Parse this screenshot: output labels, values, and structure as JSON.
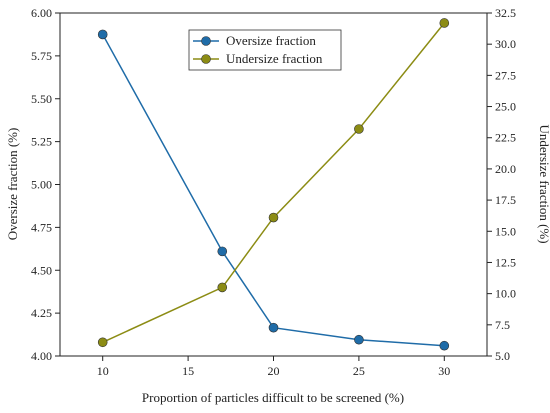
{
  "chart_data": {
    "type": "line",
    "title": "",
    "xlabel": "Proportion of particles difficult to be screened (%)",
    "ylabel_left": "Oversize fraction  (%)",
    "ylabel_right": "Undersize fraction (%)",
    "x": [
      10,
      17,
      20,
      25,
      30
    ],
    "xlim": [
      7.5,
      32.5
    ],
    "xticks": [
      "10",
      "15",
      "20",
      "25",
      "30"
    ],
    "xtick_values": [
      10,
      15,
      20,
      25,
      30
    ],
    "ylim_left": [
      4.0,
      6.0
    ],
    "yticks_left": [
      "4.00",
      "4.25",
      "4.50",
      "4.75",
      "5.00",
      "5.25",
      "5.50",
      "5.75",
      "6.00"
    ],
    "ytick_values_left": [
      4.0,
      4.25,
      4.5,
      4.75,
      5.0,
      5.25,
      5.5,
      5.75,
      6.0
    ],
    "ylim_right": [
      5.0,
      32.5
    ],
    "yticks_right": [
      "5.0",
      "7.5",
      "10.0",
      "12.5",
      "15.0",
      "17.5",
      "20.0",
      "22.5",
      "25.0",
      "27.5",
      "30.0",
      "32.5"
    ],
    "ytick_values_right": [
      5.0,
      7.5,
      10.0,
      12.5,
      15.0,
      17.5,
      20.0,
      22.5,
      25.0,
      27.5,
      30.0,
      32.5
    ],
    "grid": false,
    "legend_position": "top-center",
    "series": [
      {
        "name": "Oversize fraction",
        "axis": "left",
        "color": "#1f6ca8",
        "values": [
          5.875,
          4.61,
          4.165,
          4.095,
          4.06
        ]
      },
      {
        "name": "Undersize fraction",
        "axis": "right",
        "color": "#8c8c14",
        "values": [
          6.1,
          10.5,
          16.1,
          23.2,
          31.7
        ]
      }
    ]
  }
}
